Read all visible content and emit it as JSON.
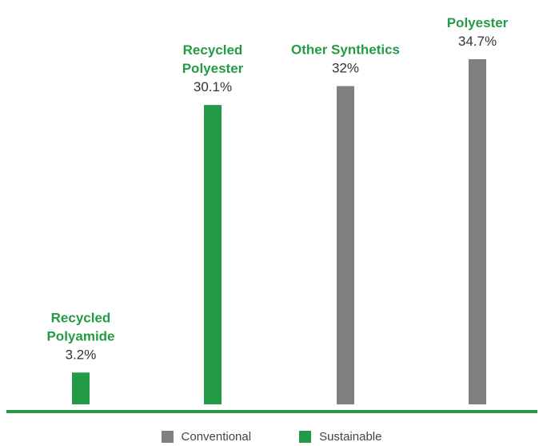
{
  "colors": {
    "conventional": "#808080",
    "sustainable": "#239b46",
    "baseline": "#239b46"
  },
  "chart_data": {
    "type": "bar",
    "categories": [
      "Recycled Polyamide",
      "Recycled Polyester",
      "Other Synthetics",
      "Polyester"
    ],
    "category_label_lines": [
      [
        "Recycled",
        "Polyamide"
      ],
      [
        "Recycled",
        "Polyester"
      ],
      [
        "Other Synthetics"
      ],
      [
        "Polyester"
      ]
    ],
    "values": [
      3.2,
      30.1,
      32,
      34.7
    ],
    "value_labels": [
      "3.2%",
      "30.1%",
      "32%",
      "34.7%"
    ],
    "group": [
      "Sustainable",
      "Sustainable",
      "Conventional",
      "Conventional"
    ],
    "legend": [
      {
        "name": "Conventional",
        "color": "#808080"
      },
      {
        "name": "Sustainable",
        "color": "#239b46"
      }
    ],
    "legend_position": "bottom",
    "ylim": [
      0,
      34.7
    ],
    "grid": false,
    "title": "",
    "xlabel": "",
    "ylabel": ""
  }
}
